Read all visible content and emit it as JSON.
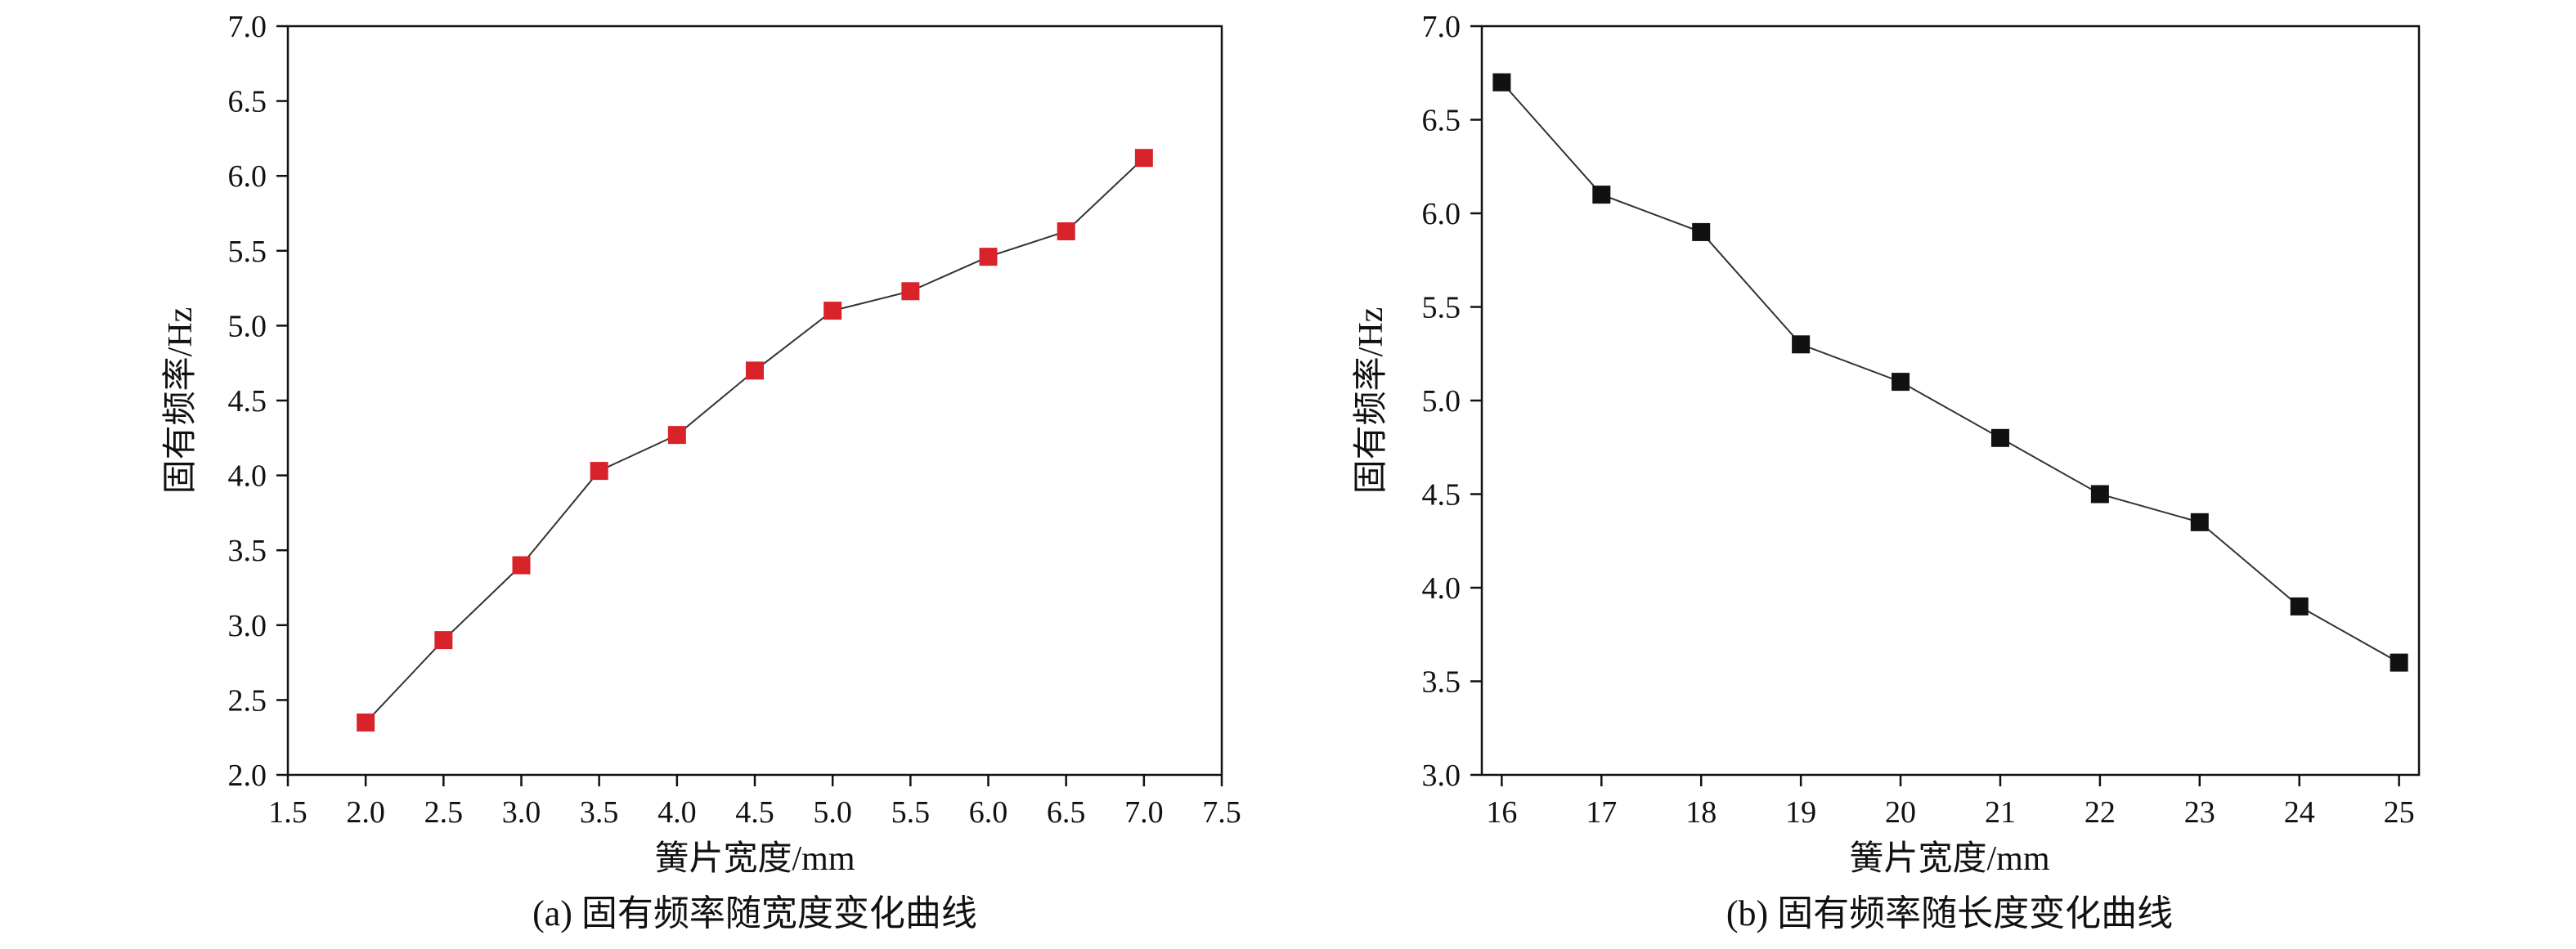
{
  "chart_data": [
    {
      "id": "a",
      "type": "line",
      "caption": "(a) 固有频率随宽度变化曲线",
      "xlabel": "簧片宽度/mm",
      "ylabel": "固有频率/Hz",
      "xlim": [
        1.5,
        7.5
      ],
      "ylim": [
        2.0,
        7.0
      ],
      "xticks": [
        "1.5",
        "2.0",
        "2.5",
        "3.0",
        "3.5",
        "4.0",
        "4.5",
        "5.0",
        "5.5",
        "6.0",
        "6.5",
        "7.0",
        "7.5"
      ],
      "yticks": [
        "2.0",
        "2.5",
        "3.0",
        "3.5",
        "4.0",
        "4.5",
        "5.0",
        "5.5",
        "6.0",
        "6.5",
        "7.0"
      ],
      "marker_color": "#d8232a",
      "line_color": "#333333",
      "grid": false,
      "series": [
        {
          "x": [
            2.0,
            2.5,
            3.0,
            3.5,
            4.0,
            4.5,
            5.0,
            5.5,
            6.0,
            6.5,
            7.0
          ],
          "y": [
            2.35,
            2.9,
            3.4,
            4.03,
            4.27,
            4.7,
            5.1,
            5.23,
            5.46,
            5.63,
            6.12
          ]
        }
      ]
    },
    {
      "id": "b",
      "type": "line",
      "caption": "(b) 固有频率随长度变化曲线",
      "xlabel": "簧片宽度/mm",
      "ylabel": "固有频率/Hz",
      "xlim": [
        15.8,
        25.2
      ],
      "ylim": [
        3.0,
        7.0
      ],
      "xticks": [
        "16",
        "17",
        "18",
        "19",
        "20",
        "21",
        "22",
        "23",
        "24",
        "25"
      ],
      "yticks": [
        "3.0",
        "3.5",
        "4.0",
        "4.5",
        "5.0",
        "5.5",
        "6.0",
        "6.5",
        "7.0"
      ],
      "marker_color": "#111111",
      "line_color": "#333333",
      "grid": false,
      "series": [
        {
          "x": [
            16,
            17,
            18,
            19,
            20,
            21,
            22,
            23,
            24,
            25
          ],
          "y": [
            6.7,
            6.1,
            5.9,
            5.3,
            5.1,
            4.8,
            4.5,
            4.35,
            3.9,
            3.6
          ]
        }
      ]
    }
  ]
}
